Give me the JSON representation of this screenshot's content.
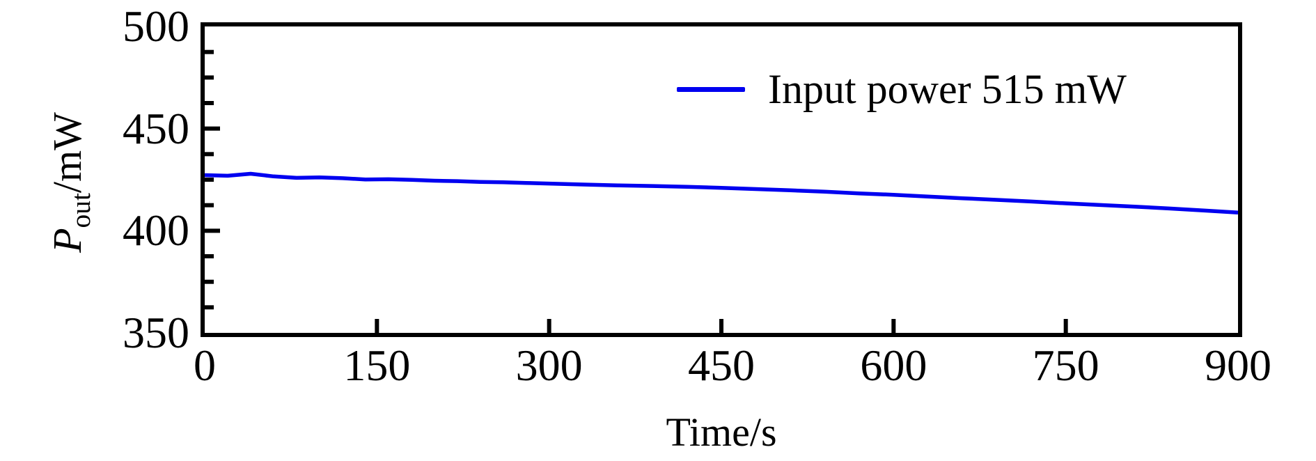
{
  "figure": {
    "background": "#ffffff",
    "axis_color": "#000000"
  },
  "chart_data": {
    "type": "line",
    "title": "",
    "xlabel": "Time/s",
    "ylabel": {
      "symbol": "P",
      "subscript": "out",
      "unit": "/mW"
    },
    "xlim": [
      0,
      900
    ],
    "ylim": [
      350,
      500
    ],
    "x_ticks": [
      0,
      150,
      300,
      450,
      600,
      750,
      900
    ],
    "y_ticks": [
      350,
      400,
      450,
      500
    ],
    "y_minor_step": 12.5,
    "grid": false,
    "legend": {
      "position": "upper-right",
      "entries": [
        {
          "label": "Input power 515 mW",
          "color": "#0000f0"
        }
      ]
    },
    "series": [
      {
        "name": "Input power 515 mW",
        "color": "#0000f0",
        "x": [
          0,
          20,
          40,
          60,
          80,
          100,
          120,
          140,
          160,
          180,
          200,
          220,
          240,
          260,
          280,
          300,
          330,
          360,
          390,
          420,
          450,
          480,
          510,
          540,
          570,
          600,
          630,
          660,
          690,
          720,
          750,
          780,
          810,
          840,
          870,
          900
        ],
        "y": [
          427.2,
          426.9,
          427.9,
          426.6,
          425.9,
          426.1,
          425.7,
          425.1,
          425.2,
          424.9,
          424.5,
          424.3,
          423.9,
          423.7,
          423.4,
          423.1,
          422.6,
          422.2,
          421.9,
          421.5,
          421.0,
          420.4,
          419.8,
          419.1,
          418.3,
          417.6,
          416.7,
          415.9,
          415.1,
          414.3,
          413.4,
          412.6,
          411.8,
          410.9,
          409.9,
          408.9
        ]
      }
    ]
  }
}
